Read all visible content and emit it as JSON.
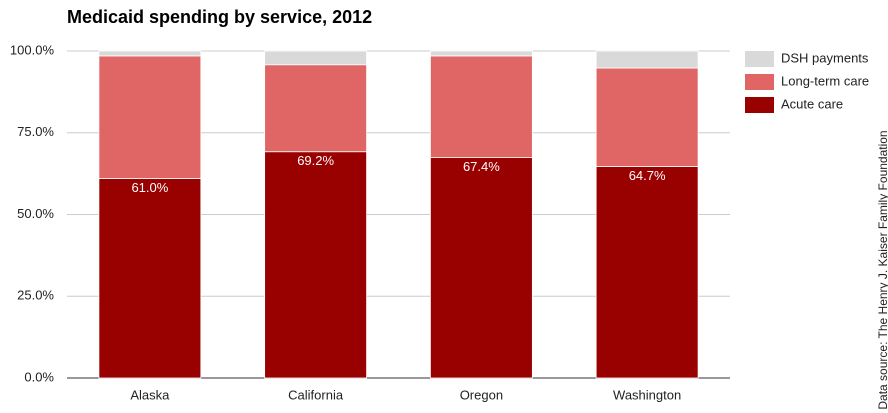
{
  "chart_data": {
    "type": "stacked_bar",
    "title": "Medicaid spending by service, 2012",
    "source": "Data source: The Henry J. Kaiser Family Foundation",
    "categories": [
      "Alaska",
      "California",
      "Oregon",
      "Washington"
    ],
    "series": [
      {
        "name": "Acute care",
        "color": "#990000",
        "values": [
          61.0,
          69.2,
          67.4,
          64.7
        ],
        "value_labels": [
          "61.0%",
          "69.2%",
          "67.4%",
          "64.7%"
        ]
      },
      {
        "name": "Long-term care",
        "color": "#e06666",
        "values": [
          37.5,
          26.6,
          31.1,
          30.1
        ]
      },
      {
        "name": "DSH payments",
        "color": "#d9d9d9",
        "values": [
          1.5,
          4.2,
          1.5,
          5.2
        ]
      }
    ],
    "ylim": [
      0,
      100
    ],
    "yticks": [
      {
        "value": 0,
        "label": "0.0%"
      },
      {
        "value": 25,
        "label": "25.0%"
      },
      {
        "value": 50,
        "label": "50.0%"
      },
      {
        "value": 75,
        "label": "75.0%"
      },
      {
        "value": 100,
        "label": "100.0%"
      }
    ],
    "grid": true,
    "legend": "right"
  }
}
